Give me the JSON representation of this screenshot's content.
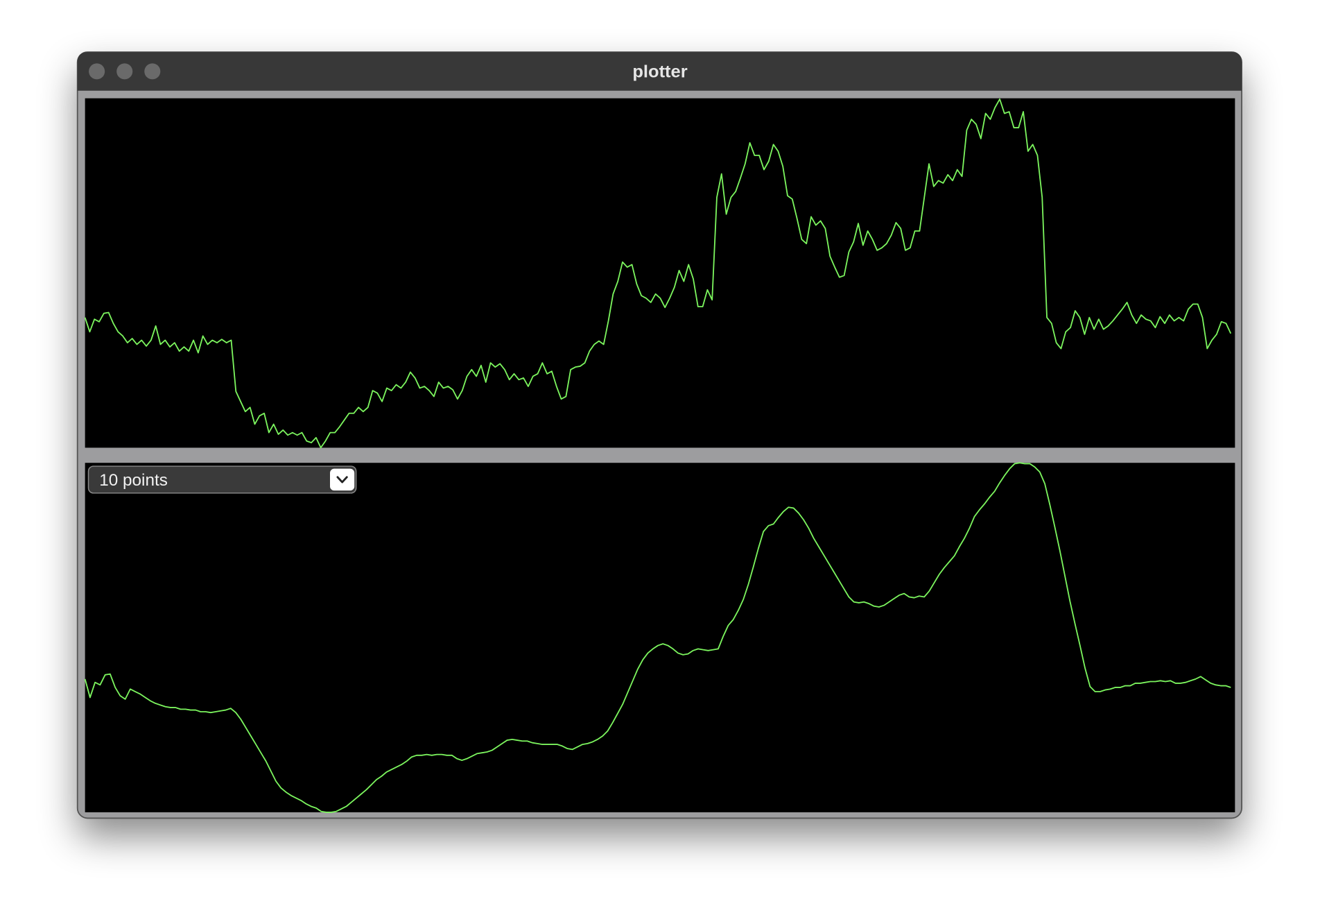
{
  "window_title": "plotter",
  "dropdown": {
    "label": "10 points"
  },
  "chart_data": [
    {
      "type": "line",
      "color": "#7cf55e",
      "ylim": [
        0,
        416
      ],
      "values": [
        155,
        138,
        153,
        150,
        160,
        161,
        148,
        138,
        133,
        125,
        130,
        123,
        128,
        121,
        128,
        145,
        123,
        128,
        120,
        125,
        115,
        120,
        115,
        128,
        113,
        133,
        123,
        128,
        125,
        129,
        125,
        128,
        67,
        55,
        43,
        48,
        28,
        38,
        41,
        18,
        28,
        16,
        21,
        15,
        18,
        15,
        18,
        8,
        6,
        12,
        0,
        8,
        18,
        18,
        25,
        33,
        41,
        41,
        48,
        43,
        48,
        68,
        65,
        55,
        71,
        68,
        75,
        71,
        78,
        90,
        83,
        71,
        73,
        68,
        61,
        78,
        71,
        73,
        69,
        58,
        68,
        85,
        93,
        85,
        98,
        78,
        101,
        96,
        100,
        93,
        81,
        88,
        81,
        83,
        73,
        85,
        88,
        101,
        88,
        91,
        73,
        58,
        61,
        93,
        96,
        97,
        101,
        115,
        123,
        127,
        123,
        151,
        183,
        198,
        221,
        215,
        218,
        195,
        181,
        178,
        173,
        183,
        178,
        167,
        178,
        191,
        211,
        198,
        218,
        201,
        168,
        168,
        188,
        176,
        298,
        326,
        278,
        298,
        305,
        321,
        338,
        363,
        348,
        348,
        331,
        341,
        361,
        353,
        335,
        300,
        296,
        273,
        248,
        243,
        275,
        265,
        270,
        261,
        228,
        215,
        203,
        205,
        233,
        245,
        267,
        241,
        258,
        248,
        235,
        238,
        243,
        253,
        268,
        261,
        235,
        238,
        258,
        258,
        298,
        338,
        311,
        318,
        315,
        325,
        318,
        331,
        323,
        378,
        391,
        385,
        368,
        398,
        391,
        405,
        415,
        398,
        400,
        381,
        381,
        400,
        353,
        361,
        348,
        298,
        155,
        148,
        125,
        118,
        138,
        143,
        163,
        155,
        135,
        155,
        141,
        153,
        141,
        145,
        151,
        158,
        165,
        173,
        158,
        148,
        158,
        153,
        151,
        143,
        156,
        148,
        158,
        151,
        155,
        151,
        165,
        171,
        171,
        155,
        118,
        128,
        135,
        150,
        148,
        136
      ]
    },
    {
      "type": "line",
      "color": "#7cf55e",
      "ylim": [
        0,
        417
      ],
      "values": [
        159,
        137,
        155,
        152,
        164,
        165,
        149,
        139,
        135,
        147,
        144,
        141,
        137,
        133,
        130,
        128,
        126,
        125,
        125,
        123,
        123,
        122,
        122,
        120,
        120,
        119,
        120,
        121,
        122,
        124,
        119,
        111,
        101,
        91,
        81,
        71,
        61,
        49,
        37,
        29,
        24,
        20,
        17,
        14,
        10,
        7,
        5,
        1,
        0,
        0,
        1,
        4,
        7,
        12,
        17,
        22,
        27,
        33,
        39,
        43,
        48,
        51,
        54,
        57,
        61,
        66,
        68,
        68,
        69,
        68,
        69,
        69,
        68,
        68,
        64,
        62,
        64,
        67,
        70,
        71,
        72,
        74,
        78,
        82,
        86,
        87,
        86,
        85,
        85,
        83,
        82,
        81,
        81,
        81,
        81,
        79,
        76,
        75,
        78,
        81,
        82,
        84,
        87,
        91,
        97,
        107,
        118,
        129,
        143,
        157,
        171,
        182,
        190,
        195,
        199,
        201,
        199,
        195,
        190,
        188,
        189,
        193,
        195,
        194,
        193,
        194,
        195,
        210,
        223,
        230,
        241,
        254,
        272,
        293,
        315,
        335,
        342,
        344,
        352,
        359,
        364,
        363,
        357,
        349,
        339,
        327,
        317,
        307,
        297,
        287,
        277,
        267,
        257,
        251,
        250,
        251,
        249,
        246,
        245,
        247,
        251,
        255,
        259,
        261,
        257,
        256,
        258,
        257,
        264,
        274,
        284,
        292,
        299,
        306,
        317,
        327,
        339,
        353,
        361,
        368,
        376,
        383,
        393,
        402,
        410,
        416,
        417,
        416,
        416,
        412,
        406,
        392,
        367,
        340,
        312,
        282,
        252,
        225,
        199,
        172,
        150,
        144,
        144,
        146,
        147,
        149,
        149,
        151,
        151,
        154,
        154,
        155,
        156,
        156,
        157,
        156,
        157,
        154,
        154,
        155,
        157,
        159,
        162,
        158,
        154,
        152,
        151,
        151,
        149
      ]
    }
  ]
}
